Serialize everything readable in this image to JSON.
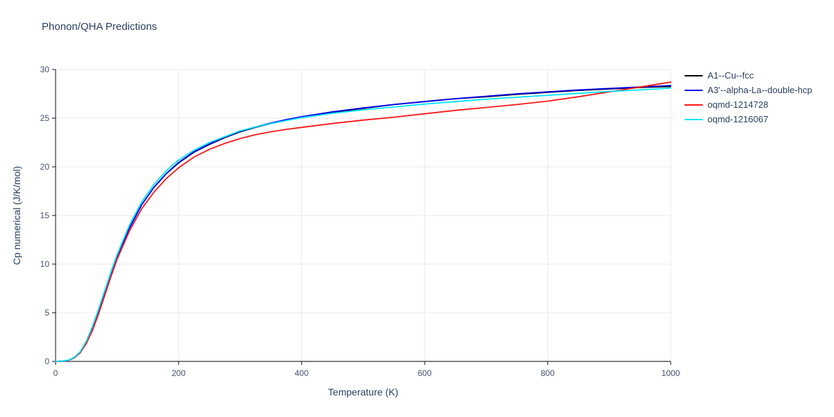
{
  "chart_data": {
    "type": "line",
    "title": "Phonon/QHA Predictions",
    "xlabel": "Temperature (K)",
    "ylabel": "Cp numerical (J/K/mol)",
    "xlim": [
      0,
      1000
    ],
    "ylim": [
      0,
      30
    ],
    "xticks": [
      0,
      200,
      400,
      600,
      800,
      1000
    ],
    "yticks": [
      0,
      5,
      10,
      15,
      20,
      25,
      30
    ],
    "grid": true,
    "legend_position": "top-right-outside",
    "x": [
      0,
      10,
      20,
      30,
      40,
      50,
      60,
      70,
      80,
      90,
      100,
      120,
      140,
      160,
      180,
      200,
      225,
      250,
      275,
      300,
      325,
      350,
      375,
      400,
      450,
      500,
      550,
      600,
      650,
      700,
      750,
      800,
      850,
      900,
      950,
      1000
    ],
    "series": [
      {
        "name": "A1--Cu--fcc",
        "color": "#000000",
        "values": [
          0,
          0.02,
          0.1,
          0.35,
          0.9,
          1.9,
          3.3,
          5.0,
          6.9,
          8.8,
          10.6,
          13.7,
          16.1,
          17.9,
          19.3,
          20.4,
          21.5,
          22.3,
          23.0,
          23.6,
          24.05,
          24.45,
          24.8,
          25.1,
          25.6,
          26.0,
          26.4,
          26.7,
          27.0,
          27.2,
          27.45,
          27.65,
          27.85,
          28.0,
          28.15,
          28.25
        ]
      },
      {
        "name": "A3'--alpha-La--double-hcp",
        "color": "#0000ee",
        "values": [
          0,
          0.02,
          0.1,
          0.35,
          0.9,
          1.9,
          3.3,
          5.0,
          6.9,
          8.8,
          10.6,
          13.7,
          16.1,
          17.9,
          19.3,
          20.45,
          21.55,
          22.35,
          23.05,
          23.65,
          24.1,
          24.5,
          24.85,
          25.15,
          25.65,
          26.05,
          26.4,
          26.7,
          27.0,
          27.25,
          27.5,
          27.7,
          27.9,
          28.05,
          28.2,
          28.35
        ]
      },
      {
        "name": "oqmd-1214728",
        "color": "#ff1515",
        "values": [
          0,
          0.02,
          0.1,
          0.35,
          0.9,
          1.85,
          3.2,
          4.9,
          6.8,
          8.7,
          10.5,
          13.4,
          15.7,
          17.4,
          18.8,
          19.9,
          21.0,
          21.8,
          22.4,
          22.9,
          23.3,
          23.6,
          23.85,
          24.05,
          24.45,
          24.8,
          25.1,
          25.45,
          25.8,
          26.1,
          26.4,
          26.75,
          27.2,
          27.7,
          28.2,
          28.7
        ]
      },
      {
        "name": "oqmd-1216067",
        "color": "#00e5ff",
        "values": [
          0,
          0.03,
          0.12,
          0.4,
          1.0,
          2.1,
          3.6,
          5.4,
          7.3,
          9.2,
          11.0,
          14.0,
          16.4,
          18.2,
          19.6,
          20.7,
          21.7,
          22.5,
          23.1,
          23.7,
          24.1,
          24.45,
          24.75,
          25.05,
          25.5,
          25.85,
          26.15,
          26.45,
          26.7,
          26.95,
          27.15,
          27.35,
          27.55,
          27.75,
          27.9,
          28.1
        ]
      }
    ],
    "colors": {
      "title": "#2a3f5f",
      "axis_text": "#45506b",
      "grid": "#e8eaed",
      "spine": "#333333",
      "background": "#ffffff"
    }
  }
}
